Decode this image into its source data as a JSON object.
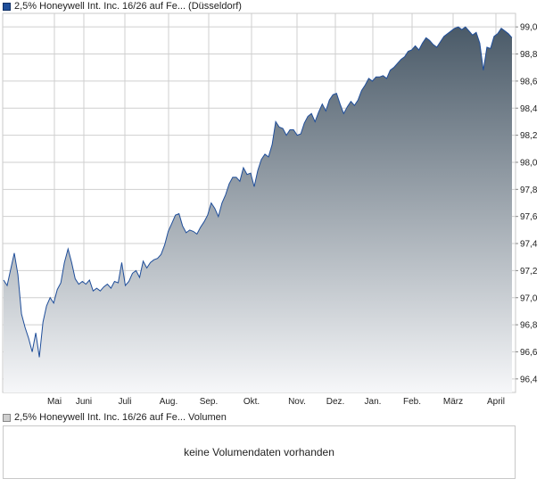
{
  "legend": {
    "price_label": "2,5% Honeywell Int. Inc. 16/26 auf Fe... (Düsseldorf)",
    "volume_label": "2,5% Honeywell Int. Inc. 16/26 auf Fe... Volumen"
  },
  "volume": {
    "message": "keine Volumendaten vorhanden"
  },
  "colors": {
    "line": "#1f4e9a",
    "fill_top": "#4a5a68",
    "fill_bottom": "#f6f7f9",
    "grid": "#cfcfcf"
  },
  "chart_data": {
    "type": "area",
    "title": "",
    "xlabel": "",
    "ylabel": "",
    "ylim": [
      96.3,
      99.1
    ],
    "y_ticks": [
      "96,4",
      "96,6",
      "96,8",
      "97,0",
      "97,2",
      "97,4",
      "97,6",
      "97,8",
      "98,0",
      "98,2",
      "98,4",
      "98,6",
      "98,8",
      "99,0"
    ],
    "x_ticks": [
      "Mai",
      "Juni",
      "Juli",
      "Aug.",
      "Sep.",
      "Okt.",
      "Nov.",
      "Dez.",
      "Jan.",
      "Feb.",
      "März",
      "April"
    ],
    "y_axis_position": "right",
    "grid": true,
    "series": [
      {
        "points": [
          [
            0,
            97.13
          ],
          [
            1,
            97.09
          ],
          [
            2,
            97.21
          ],
          [
            3,
            97.33
          ],
          [
            4,
            97.17
          ],
          [
            5,
            96.88
          ],
          [
            6,
            96.78
          ],
          [
            7,
            96.7
          ],
          [
            8,
            96.6
          ],
          [
            9,
            96.74
          ],
          [
            10,
            96.56
          ],
          [
            11,
            96.82
          ],
          [
            12,
            96.94
          ],
          [
            13,
            97.0
          ],
          [
            14,
            96.96
          ],
          [
            15,
            97.06
          ],
          [
            16,
            97.11
          ],
          [
            17,
            97.26
          ],
          [
            18,
            97.36
          ],
          [
            19,
            97.26
          ],
          [
            20,
            97.14
          ],
          [
            21,
            97.1
          ],
          [
            22,
            97.12
          ],
          [
            23,
            97.1
          ],
          [
            24,
            97.13
          ],
          [
            25,
            97.05
          ],
          [
            26,
            97.07
          ],
          [
            27,
            97.05
          ],
          [
            28,
            97.08
          ],
          [
            29,
            97.1
          ],
          [
            30,
            97.07
          ],
          [
            31,
            97.12
          ],
          [
            32,
            97.11
          ],
          [
            33,
            97.26
          ],
          [
            34,
            97.09
          ],
          [
            35,
            97.12
          ],
          [
            36,
            97.18
          ],
          [
            37,
            97.2
          ],
          [
            38,
            97.15
          ],
          [
            39,
            97.27
          ],
          [
            40,
            97.22
          ],
          [
            41,
            97.26
          ],
          [
            42,
            97.28
          ],
          [
            43,
            97.29
          ],
          [
            44,
            97.32
          ],
          [
            45,
            97.39
          ],
          [
            46,
            97.49
          ],
          [
            47,
            97.55
          ],
          [
            48,
            97.61
          ],
          [
            49,
            97.62
          ],
          [
            50,
            97.53
          ],
          [
            51,
            97.48
          ],
          [
            52,
            97.5
          ],
          [
            53,
            97.49
          ],
          [
            54,
            97.47
          ],
          [
            55,
            97.52
          ],
          [
            56,
            97.56
          ],
          [
            57,
            97.61
          ],
          [
            58,
            97.7
          ],
          [
            59,
            97.66
          ],
          [
            60,
            97.6
          ],
          [
            61,
            97.7
          ],
          [
            62,
            97.76
          ],
          [
            63,
            97.84
          ],
          [
            64,
            97.89
          ],
          [
            65,
            97.89
          ],
          [
            66,
            97.86
          ],
          [
            67,
            97.96
          ],
          [
            68,
            97.91
          ],
          [
            69,
            97.92
          ],
          [
            70,
            97.82
          ],
          [
            71,
            97.94
          ],
          [
            72,
            98.02
          ],
          [
            73,
            98.06
          ],
          [
            74,
            98.04
          ],
          [
            75,
            98.13
          ],
          [
            76,
            98.3
          ],
          [
            77,
            98.26
          ],
          [
            78,
            98.25
          ],
          [
            79,
            98.2
          ],
          [
            80,
            98.24
          ],
          [
            81,
            98.24
          ],
          [
            82,
            98.2
          ],
          [
            83,
            98.21
          ],
          [
            84,
            98.29
          ],
          [
            85,
            98.34
          ],
          [
            86,
            98.36
          ],
          [
            87,
            98.3
          ],
          [
            88,
            98.37
          ],
          [
            89,
            98.43
          ],
          [
            90,
            98.38
          ],
          [
            91,
            98.46
          ],
          [
            92,
            98.5
          ],
          [
            93,
            98.51
          ],
          [
            94,
            98.43
          ],
          [
            95,
            98.36
          ],
          [
            96,
            98.41
          ],
          [
            97,
            98.45
          ],
          [
            98,
            98.42
          ],
          [
            99,
            98.46
          ],
          [
            100,
            98.53
          ],
          [
            101,
            98.57
          ],
          [
            102,
            98.62
          ],
          [
            103,
            98.6
          ],
          [
            104,
            98.63
          ],
          [
            105,
            98.63
          ],
          [
            106,
            98.64
          ],
          [
            107,
            98.62
          ],
          [
            108,
            98.68
          ],
          [
            109,
            98.7
          ],
          [
            110,
            98.73
          ],
          [
            111,
            98.76
          ],
          [
            112,
            98.78
          ],
          [
            113,
            98.82
          ],
          [
            114,
            98.83
          ],
          [
            115,
            98.86
          ],
          [
            116,
            98.83
          ],
          [
            117,
            98.88
          ],
          [
            118,
            98.92
          ],
          [
            119,
            98.9
          ],
          [
            120,
            98.87
          ],
          [
            121,
            98.85
          ],
          [
            122,
            98.89
          ],
          [
            123,
            98.93
          ],
          [
            124,
            98.95
          ],
          [
            125,
            98.97
          ],
          [
            126,
            98.99
          ],
          [
            127,
            99.0
          ],
          [
            128,
            98.98
          ],
          [
            129,
            99.0
          ],
          [
            130,
            98.97
          ],
          [
            131,
            98.94
          ],
          [
            132,
            98.96
          ],
          [
            133,
            98.88
          ],
          [
            134,
            98.68
          ],
          [
            135,
            98.85
          ],
          [
            136,
            98.84
          ],
          [
            137,
            98.93
          ],
          [
            138,
            98.95
          ],
          [
            139,
            98.99
          ],
          [
            140,
            98.97
          ],
          [
            141,
            98.95
          ],
          [
            142,
            98.92
          ]
        ]
      }
    ]
  }
}
